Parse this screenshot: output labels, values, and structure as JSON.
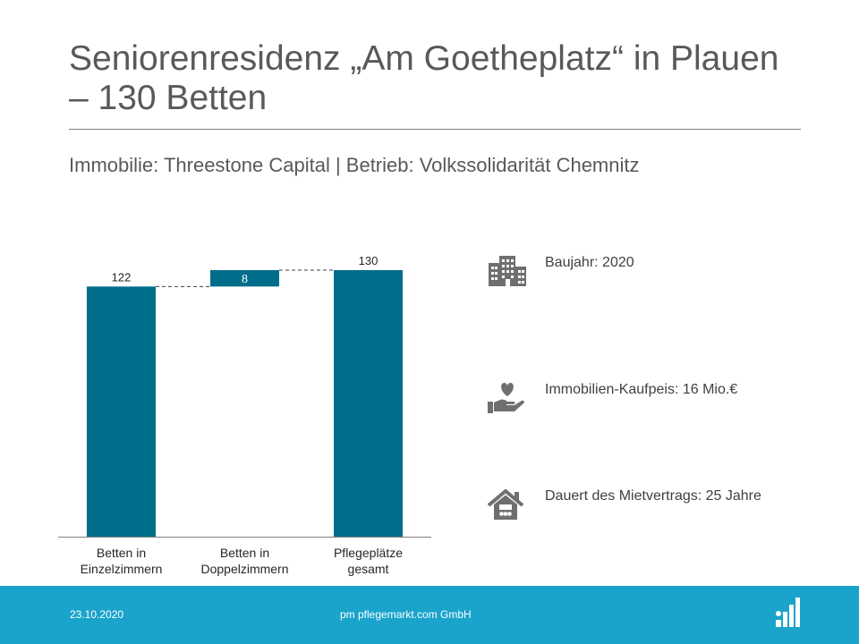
{
  "slide": {
    "title": "Seniorenresidenz „Am Goetheplatz“ in Plauen – 130 Betten",
    "subtitle": "Immobilie: Threestone Capital | Betrieb: Volkssolidarität Chemnitz"
  },
  "chart_data": {
    "type": "bar",
    "categories": [
      "Betten in Einzelzimmern",
      "Betten in Doppelzimmern",
      "Pflegeplätze gesamt"
    ],
    "values": [
      122,
      8,
      130
    ],
    "bases": [
      0,
      122,
      0
    ],
    "labels": [
      "122",
      "8",
      "130"
    ],
    "ylim": [
      0,
      130
    ],
    "color": "#006e8a",
    "grid": false
  },
  "info": [
    {
      "icon": "building-icon",
      "text": "Baujahr: 2020"
    },
    {
      "icon": "hand-heart-icon",
      "text": "Immobilien-Kaufpeis: 16 Mio.€"
    },
    {
      "icon": "house-icon",
      "text": "Dauert des Mietvertrags: 25 Jahre"
    }
  ],
  "footer": {
    "date": "23.10.2020",
    "company": "pm pflegemarkt.com GmbH",
    "logo_icon": "pflegemarkt-logo-icon",
    "background": "#1aa4cc"
  }
}
